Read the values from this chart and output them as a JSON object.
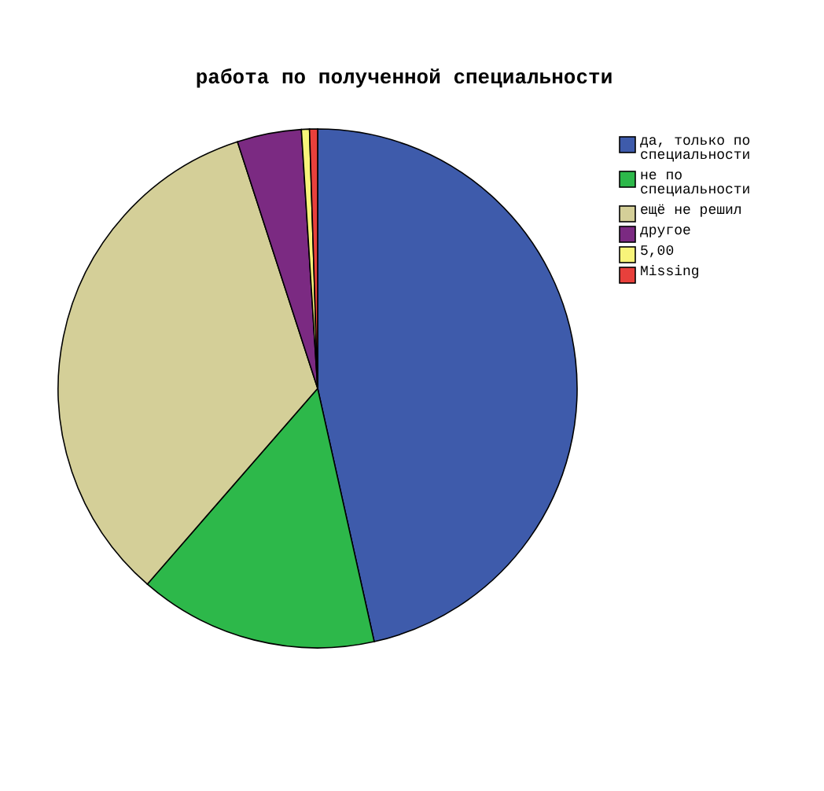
{
  "chart_data": {
    "type": "pie",
    "title": "работа по полученной специальности",
    "categories": [
      "да, только по специальности",
      "не по специальности",
      "ещё не решил",
      "другое",
      "5,00",
      "Missing"
    ],
    "values": [
      46.5,
      14.9,
      33.6,
      4.0,
      0.5,
      0.5
    ],
    "colors": [
      "#3e5bab",
      "#2db84a",
      "#d4cf98",
      "#7b2a82",
      "#f8f47a",
      "#e8403c"
    ],
    "legend": "right"
  }
}
